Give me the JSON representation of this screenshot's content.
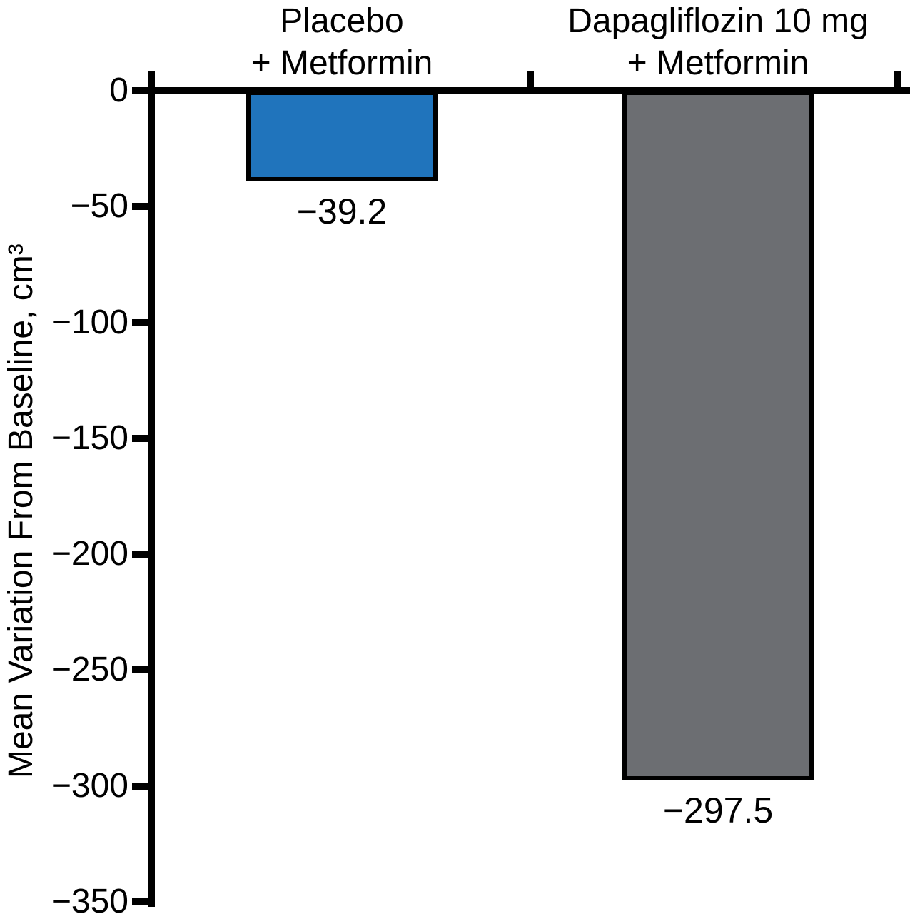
{
  "figure": {
    "background_color": "#FFFFFF",
    "axis_color": "#000000",
    "text_color": "#000000"
  },
  "chart_data": {
    "type": "bar",
    "title": "",
    "xlabel": "",
    "ylabel": "Mean Variation From Baseline, cm³",
    "ylim": [
      -350,
      0
    ],
    "ytick_values": [
      0,
      -50,
      -100,
      -150,
      -200,
      -250,
      -300,
      -350
    ],
    "ytick_labels": [
      "0",
      "−50",
      "−100",
      "−150",
      "−200",
      "−250",
      "−300",
      "−350"
    ],
    "grid": false,
    "legend": null,
    "categories": [
      "Placebo + Metformin",
      "Dapagliflozin 10 mg + Metformin"
    ],
    "values": [
      -39.2,
      -297.5
    ],
    "series": [
      {
        "name": "Mean variation from baseline",
        "values": [
          -39.2,
          -297.5
        ]
      }
    ],
    "bars": [
      {
        "category_lines": [
          "Placebo",
          "+ Metformin"
        ],
        "value": -39.2,
        "value_label": "−39.2",
        "color": "#2074BC"
      },
      {
        "category_lines": [
          "Dapagliflozin 10 mg",
          "+ Metformin"
        ],
        "value": -297.5,
        "value_label": "−297.5",
        "color": "#6C6E72"
      }
    ]
  }
}
